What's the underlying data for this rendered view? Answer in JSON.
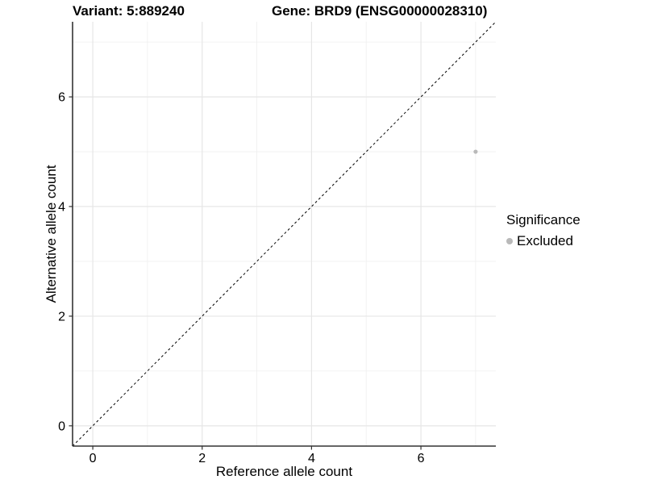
{
  "titles": {
    "left": "Variant: 5:889240",
    "right": "Gene: BRD9 (ENSG00000028310)"
  },
  "chart_data": {
    "type": "scatter",
    "title": "",
    "xlabel": "Reference allele count",
    "ylabel": "Alternative allele count",
    "xlim": [
      -0.37,
      7.37
    ],
    "ylim": [
      -0.37,
      7.37
    ],
    "x_major_ticks": [
      0,
      2,
      4,
      6
    ],
    "y_major_ticks": [
      0,
      2,
      4,
      6
    ],
    "x_minor_gridlines": [
      1,
      3,
      5,
      7
    ],
    "y_minor_gridlines": [
      1,
      3,
      5,
      7
    ],
    "grid": true,
    "identity_line": {
      "style": "dashed",
      "color": "#000000"
    },
    "series": [
      {
        "name": "Excluded",
        "color": "#b9b9b9",
        "points": [
          {
            "x": 7,
            "y": 5
          }
        ]
      }
    ],
    "legend": {
      "title": "Significance",
      "position": "right",
      "items": [
        {
          "label": "Excluded",
          "color": "#b9b9b9"
        }
      ]
    },
    "colors": {
      "background": "#ffffff",
      "grid_major": "#e6e6e6",
      "grid_minor": "#efefef",
      "axis_line": "#333333",
      "tick_mark": "#333333",
      "tick_label": "#000000"
    }
  }
}
